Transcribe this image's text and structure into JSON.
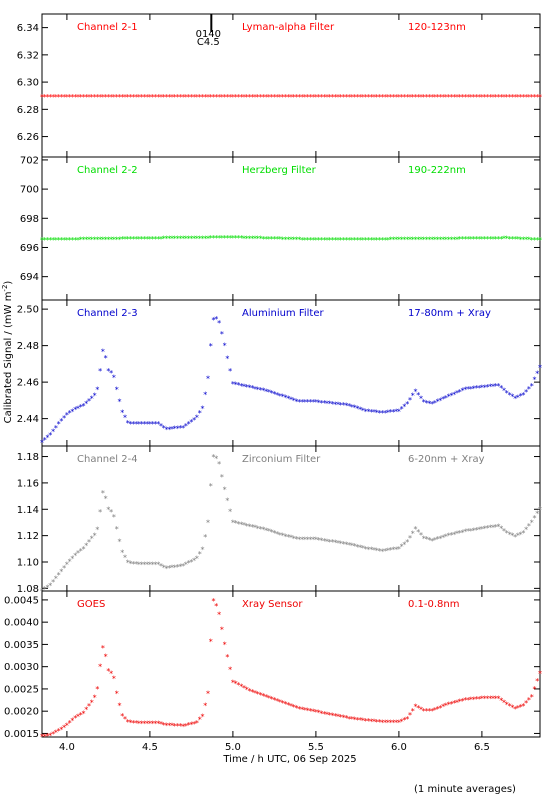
{
  "chart_data": {
    "type": "scatter",
    "xlabel": "Time / h UTC, 06 Sep 2025",
    "ylabel": "Calibrated Signal / (mW m",
    "ylabel_sup": "-2",
    "ylabel_close": ")",
    "footnote": "(1 minute averages)",
    "xlim": [
      3.85,
      6.85
    ],
    "xticks": [
      "4.0",
      "4.5",
      "5.0",
      "5.5",
      "6.0",
      "6.5"
    ],
    "xtick_values": [
      4.0,
      4.5,
      5.0,
      5.5,
      6.0,
      6.5
    ],
    "marker_text": [
      "0140",
      "C4.5"
    ],
    "marker_x": 4.87,
    "panels": [
      {
        "name": "Channel 2-1",
        "filter": "Lyman-alpha Filter",
        "band": "120-123nm",
        "color": "#ff0000",
        "ylim": [
          6.245,
          6.35
        ],
        "yticks": [
          "6.26",
          "6.28",
          "6.30",
          "6.32",
          "6.34"
        ],
        "ytick_values": [
          6.26,
          6.28,
          6.3,
          6.32,
          6.34
        ],
        "points": [
          [
            3.85,
            6.289
          ],
          [
            6.85,
            6.289
          ]
        ]
      },
      {
        "name": "Channel 2-2",
        "filter": "Herzberg Filter",
        "band": "190-222nm",
        "color": "#00dd00",
        "ylim": [
          692.4,
          702.2
        ],
        "yticks": [
          "694",
          "696",
          "698",
          "700",
          "702"
        ],
        "ytick_values": [
          694,
          696,
          698,
          700,
          702
        ],
        "points": [
          [
            3.85,
            696.5
          ],
          [
            4.6,
            696.6
          ],
          [
            5.0,
            696.65
          ],
          [
            5.5,
            696.5
          ],
          [
            6.25,
            696.55
          ],
          [
            6.65,
            696.6
          ],
          [
            6.85,
            696.5
          ]
        ]
      },
      {
        "name": "Channel 2-3",
        "filter": "Aluminium Filter",
        "band": "17-80nm + Xray",
        "color": "#0000cc",
        "ylim": [
          2.425,
          2.505
        ],
        "yticks": [
          "2.44",
          "2.46",
          "2.48",
          "2.50"
        ],
        "ytick_values": [
          2.44,
          2.46,
          2.48,
          2.5
        ],
        "points": [
          [
            3.85,
            2.427
          ],
          [
            3.9,
            2.431
          ],
          [
            3.95,
            2.437
          ],
          [
            4.0,
            2.442
          ],
          [
            4.05,
            2.445
          ],
          [
            4.1,
            2.447
          ],
          [
            4.15,
            2.451
          ],
          [
            4.18,
            2.454
          ],
          [
            4.2,
            2.466
          ],
          [
            4.22,
            2.479
          ],
          [
            4.25,
            2.466
          ],
          [
            4.28,
            2.464
          ],
          [
            4.3,
            2.456
          ],
          [
            4.33,
            2.444
          ],
          [
            4.37,
            2.437
          ],
          [
            4.45,
            2.437
          ],
          [
            4.55,
            2.437
          ],
          [
            4.6,
            2.434
          ],
          [
            4.7,
            2.435
          ],
          [
            4.78,
            2.44
          ],
          [
            4.82,
            2.446
          ],
          [
            4.85,
            2.462
          ],
          [
            4.88,
            2.494
          ],
          [
            4.91,
            2.495
          ],
          [
            4.95,
            2.48
          ],
          [
            5.0,
            2.459
          ],
          [
            5.1,
            2.457
          ],
          [
            5.2,
            2.455
          ],
          [
            5.3,
            2.452
          ],
          [
            5.4,
            2.449
          ],
          [
            5.5,
            2.449
          ],
          [
            5.6,
            2.448
          ],
          [
            5.7,
            2.447
          ],
          [
            5.8,
            2.444
          ],
          [
            5.9,
            2.443
          ],
          [
            6.0,
            2.444
          ],
          [
            6.05,
            2.448
          ],
          [
            6.1,
            2.455
          ],
          [
            6.15,
            2.449
          ],
          [
            6.2,
            2.448
          ],
          [
            6.3,
            2.452
          ],
          [
            6.4,
            2.456
          ],
          [
            6.5,
            2.457
          ],
          [
            6.6,
            2.458
          ],
          [
            6.65,
            2.454
          ],
          [
            6.7,
            2.451
          ],
          [
            6.75,
            2.453
          ],
          [
            6.8,
            2.458
          ],
          [
            6.85,
            2.468
          ]
        ]
      },
      {
        "name": "Channel 2-4",
        "filter": "Zirconium Filter",
        "band": "6-20nm + Xray",
        "color": "#808080",
        "ylim": [
          1.078,
          1.188
        ],
        "yticks": [
          "1.08",
          "1.10",
          "1.12",
          "1.14",
          "1.16",
          "1.18"
        ],
        "ytick_values": [
          1.08,
          1.1,
          1.12,
          1.14,
          1.16,
          1.18
        ],
        "points": [
          [
            3.85,
            1.078
          ],
          [
            3.9,
            1.082
          ],
          [
            3.95,
            1.09
          ],
          [
            4.0,
            1.098
          ],
          [
            4.05,
            1.105
          ],
          [
            4.1,
            1.11
          ],
          [
            4.15,
            1.118
          ],
          [
            4.18,
            1.122
          ],
          [
            4.2,
            1.138
          ],
          [
            4.22,
            1.155
          ],
          [
            4.25,
            1.14
          ],
          [
            4.28,
            1.136
          ],
          [
            4.3,
            1.125
          ],
          [
            4.33,
            1.108
          ],
          [
            4.37,
            1.099
          ],
          [
            4.45,
            1.098
          ],
          [
            4.55,
            1.098
          ],
          [
            4.6,
            1.095
          ],
          [
            4.7,
            1.097
          ],
          [
            4.78,
            1.102
          ],
          [
            4.82,
            1.11
          ],
          [
            4.85,
            1.13
          ],
          [
            4.88,
            1.18
          ],
          [
            4.91,
            1.178
          ],
          [
            4.95,
            1.155
          ],
          [
            5.0,
            1.13
          ],
          [
            5.1,
            1.127
          ],
          [
            5.2,
            1.124
          ],
          [
            5.3,
            1.12
          ],
          [
            5.4,
            1.117
          ],
          [
            5.5,
            1.117
          ],
          [
            5.6,
            1.115
          ],
          [
            5.7,
            1.113
          ],
          [
            5.8,
            1.11
          ],
          [
            5.9,
            1.108
          ],
          [
            6.0,
            1.11
          ],
          [
            6.05,
            1.115
          ],
          [
            6.1,
            1.125
          ],
          [
            6.15,
            1.118
          ],
          [
            6.2,
            1.116
          ],
          [
            6.3,
            1.12
          ],
          [
            6.4,
            1.123
          ],
          [
            6.5,
            1.125
          ],
          [
            6.6,
            1.127
          ],
          [
            6.65,
            1.122
          ],
          [
            6.7,
            1.119
          ],
          [
            6.75,
            1.122
          ],
          [
            6.8,
            1.13
          ],
          [
            6.85,
            1.14
          ]
        ]
      },
      {
        "name": "GOES",
        "filter": "Xray Sensor",
        "band": "0.1-0.8nm",
        "color": "#ee0000",
        "ylim": [
          0.00142,
          0.0047
        ],
        "yticks": [
          "0.0015",
          "0.0020",
          "0.0025",
          "0.0030",
          "0.0035",
          "0.0040",
          "0.0045"
        ],
        "ytick_values": [
          0.0015,
          0.002,
          0.0025,
          0.003,
          0.0035,
          0.004,
          0.0045
        ],
        "points": [
          [
            3.85,
            0.00143
          ],
          [
            3.9,
            0.00145
          ],
          [
            3.95,
            0.00155
          ],
          [
            4.0,
            0.00168
          ],
          [
            4.05,
            0.00185
          ],
          [
            4.1,
            0.00195
          ],
          [
            4.15,
            0.0022
          ],
          [
            4.18,
            0.0024
          ],
          [
            4.2,
            0.003
          ],
          [
            4.22,
            0.0035
          ],
          [
            4.25,
            0.0029
          ],
          [
            4.28,
            0.0028
          ],
          [
            4.3,
            0.0024
          ],
          [
            4.33,
            0.0019
          ],
          [
            4.37,
            0.00175
          ],
          [
            4.45,
            0.00172
          ],
          [
            4.55,
            0.00172
          ],
          [
            4.6,
            0.00168
          ],
          [
            4.7,
            0.00166
          ],
          [
            4.78,
            0.00172
          ],
          [
            4.82,
            0.0019
          ],
          [
            4.85,
            0.0024
          ],
          [
            4.88,
            0.0045
          ],
          [
            4.91,
            0.0043
          ],
          [
            4.95,
            0.0035
          ],
          [
            5.0,
            0.00265
          ],
          [
            5.1,
            0.00245
          ],
          [
            5.2,
            0.00232
          ],
          [
            5.3,
            0.00218
          ],
          [
            5.4,
            0.00205
          ],
          [
            5.5,
            0.00198
          ],
          [
            5.6,
            0.0019
          ],
          [
            5.7,
            0.00183
          ],
          [
            5.8,
            0.00178
          ],
          [
            5.9,
            0.00175
          ],
          [
            6.0,
            0.00175
          ],
          [
            6.05,
            0.00182
          ],
          [
            6.1,
            0.0021
          ],
          [
            6.15,
            0.002
          ],
          [
            6.2,
            0.002
          ],
          [
            6.3,
            0.00215
          ],
          [
            6.4,
            0.00225
          ],
          [
            6.5,
            0.00228
          ],
          [
            6.6,
            0.00228
          ],
          [
            6.65,
            0.00215
          ],
          [
            6.7,
            0.00205
          ],
          [
            6.75,
            0.00212
          ],
          [
            6.8,
            0.00232
          ],
          [
            6.85,
            0.00285
          ]
        ]
      }
    ]
  }
}
